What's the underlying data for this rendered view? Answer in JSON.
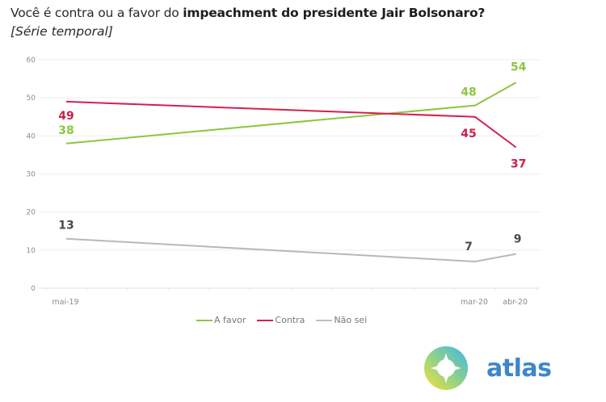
{
  "header": {
    "title_plain": "Você é contra ou a favor do ",
    "title_bold": "impeachment do presidente Jair Bolsonaro?",
    "subtitle": "[Série temporal]"
  },
  "chart_data": {
    "type": "line",
    "title": "Você é contra ou a favor do impeachment do presidente Jair Bolsonaro?",
    "subtitle": "[Série temporal]",
    "xlabel": "",
    "ylabel": "",
    "x": [
      "mai-19",
      "mar-20",
      "abr-20"
    ],
    "x_month_index": [
      0,
      10,
      11
    ],
    "x_range_months": [
      -0.7,
      12.0
    ],
    "ylim": [
      0,
      60
    ],
    "yticks": [
      0,
      10,
      20,
      30,
      40,
      50,
      60
    ],
    "grid": true,
    "legend_position": "bottom",
    "series": [
      {
        "name": "A favor",
        "color": "#8cc63f",
        "values": [
          38,
          48,
          54
        ]
      },
      {
        "name": "Contra",
        "color": "#d6204f",
        "values": [
          49,
          45,
          37
        ]
      },
      {
        "name": "Não sei",
        "color": "#b8b8b8",
        "values": [
          13,
          7,
          9
        ]
      }
    ],
    "label_colors": {
      "A favor": "#8cc63f",
      "Contra": "#c8214b",
      "Não sei": "#4a4a4a"
    }
  },
  "legend": {
    "items": [
      {
        "label": "A favor",
        "color": "#8cc63f"
      },
      {
        "label": "Contra",
        "color": "#d6204f"
      },
      {
        "label": "Não sei",
        "color": "#c0c0c0"
      }
    ]
  },
  "logo": {
    "text": "atlas",
    "color": "#3f86c9"
  }
}
